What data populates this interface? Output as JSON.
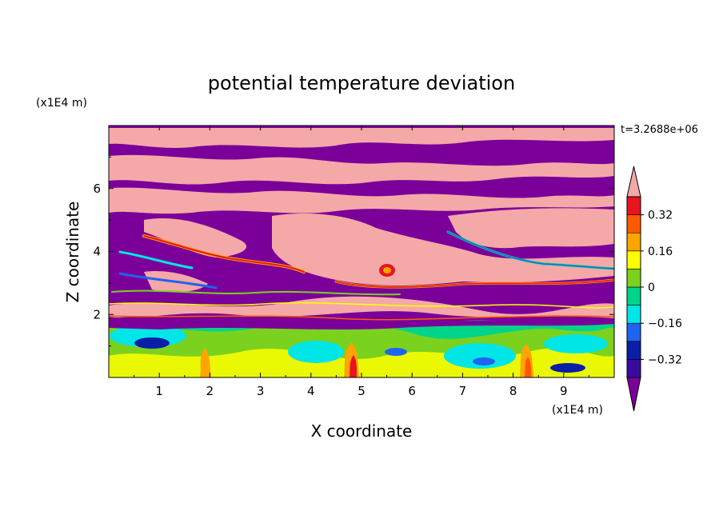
{
  "chart_data": {
    "type": "heatmap",
    "title": "potential temperature deviation",
    "xlabel": "X coordinate",
    "ylabel": "Z coordinate",
    "x_unit": "(x1E4 m)",
    "y_unit": "(x1E4 m)",
    "time_label": "t=3.2688e+06",
    "xlim": [
      0,
      10
    ],
    "ylim": [
      0,
      8
    ],
    "x_ticks": [
      "1",
      "2",
      "3",
      "4",
      "5",
      "6",
      "7",
      "8",
      "9"
    ],
    "y_ticks": [
      "2",
      "4",
      "6"
    ],
    "colorbar": {
      "levels": [
        -0.4,
        -0.32,
        -0.24,
        -0.16,
        -0.08,
        0,
        0.08,
        0.16,
        0.24,
        0.32,
        0.4
      ],
      "tick_labels": [
        "0.32",
        "0.16",
        "0",
        "−0.16",
        "−0.32"
      ],
      "tick_values": [
        0.32,
        0.16,
        0,
        -0.16,
        -0.32
      ],
      "colors": [
        "#7b009a",
        "#3b0a9e",
        "#0a1ea8",
        "#1e64f0",
        "#00e5e5",
        "#00d48a",
        "#7ad21e",
        "#ffff00",
        "#ffa500",
        "#ff5a00",
        "#e8141e",
        "#f4a8a8"
      ],
      "extend": "both"
    },
    "field_summary": [
      {
        "z_range": [
          0,
          1.7
        ],
        "description": "mixed green/yellow/cyan with some blue/orange features",
        "approx_value": 0.0
      },
      {
        "z_range": [
          1.7,
          2.2
        ],
        "description": "thin pink/purple layered band",
        "approx_value": 0.4
      },
      {
        "z_range": [
          2.2,
          5.5
        ],
        "description": "alternating purple and pink regions with red/orange fronts",
        "approx_value": 0.0
      },
      {
        "z_range": [
          5.5,
          8.0
        ],
        "description": "pink and purple layers",
        "approx_value": 0.0
      }
    ]
  }
}
